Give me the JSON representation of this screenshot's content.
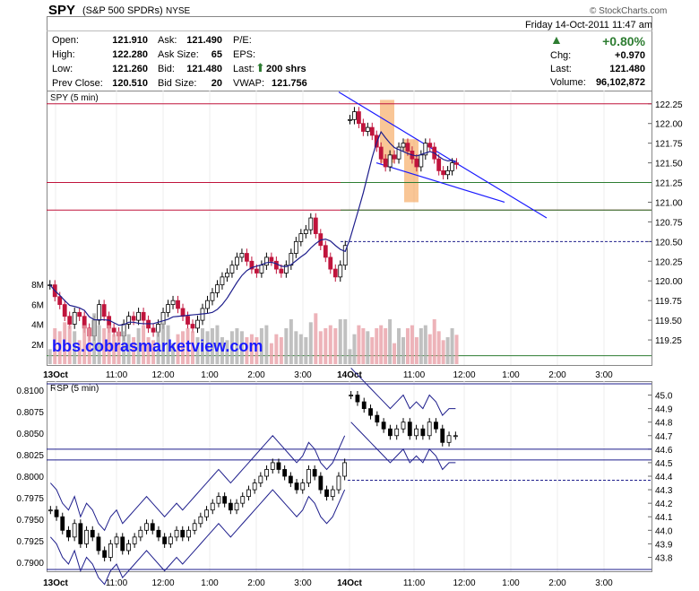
{
  "header": {
    "symbol": "SPY",
    "name": "(S&P 500 SPDRs)",
    "exchange": "NYSE",
    "credit": "© StockCharts.com",
    "date": "Friday  14-Oct-2011  11:47 am",
    "change_pct": "+0.80%",
    "chg_label": "Chg:",
    "chg": "+0.970",
    "last_label": "Last:",
    "last": "121.480",
    "volume_label": "Volume:",
    "volume": "96,102,872",
    "rows": [
      {
        "l1": "Open:",
        "v1": "121.910",
        "l2": "Ask:",
        "v2": "121.490",
        "l3": "P/E:",
        "v3": ""
      },
      {
        "l1": "High:",
        "v1": "122.280",
        "l2": "Ask Size:",
        "v2": "65",
        "l3": "EPS:",
        "v3": ""
      },
      {
        "l1": "Low:",
        "v1": "121.260",
        "l2": "Bid:",
        "v2": "121.480",
        "l3": "Last:",
        "v3": "200 shrs"
      },
      {
        "l1": "Prev Close:",
        "v1": "120.510",
        "l2": "Bid Size:",
        "v2": "20",
        "l3": "VWAP:",
        "v3": "121.756"
      }
    ]
  },
  "watermark": "bbs.cobrasmarketview.com",
  "colors": {
    "up": "#000000",
    "down": "#c0143c",
    "band": "#1e1e8c",
    "hline_red": "#c0143c",
    "hline_green": "#2e7d32",
    "trend": "#1a1aff",
    "highlight": "#f5a050"
  },
  "chart_data": [
    {
      "type": "candlestick",
      "title": "SPY (5 min)",
      "y_ticks": [
        119.25,
        119.5,
        119.75,
        120.0,
        120.25,
        120.5,
        120.75,
        121.0,
        121.25,
        121.5,
        121.75,
        122.0,
        122.25
      ],
      "ylim": [
        119.0,
        122.35
      ],
      "volume_ticks": [
        "2M",
        "4M",
        "6M",
        "8M"
      ],
      "volume_max": 9000000,
      "x_ticks": [
        "13Oct",
        "11:00",
        "12:00",
        "1:00",
        "2:00",
        "3:00",
        "14Oct",
        "11:00",
        "12:00",
        "1:00",
        "2:00",
        "3:00"
      ],
      "h_lines": [
        {
          "value": 122.25,
          "color": "red"
        },
        {
          "value": 121.25,
          "color": "green"
        },
        {
          "value": 120.9,
          "color": "red"
        },
        {
          "value": 120.9,
          "color": "green"
        },
        {
          "value": 120.5,
          "color": "blue-dashed"
        },
        {
          "value": 119.05,
          "color": "green"
        }
      ],
      "closes_day1": [
        119.95,
        119.8,
        119.7,
        119.55,
        119.45,
        119.6,
        119.55,
        119.4,
        119.3,
        119.5,
        119.7,
        119.55,
        119.4,
        119.35,
        119.3,
        119.45,
        119.55,
        119.5,
        119.6,
        119.5,
        119.4,
        119.35,
        119.45,
        119.6,
        119.7,
        119.75,
        119.65,
        119.55,
        119.45,
        119.4,
        119.5,
        119.65,
        119.75,
        119.85,
        119.95,
        120.05,
        120.1,
        120.2,
        120.3,
        120.35,
        120.25,
        120.15,
        120.1,
        120.2,
        120.3,
        120.25,
        120.15,
        120.1,
        120.2,
        120.35,
        120.5,
        120.6,
        120.65,
        120.8,
        120.6,
        120.45,
        120.3,
        120.15,
        120.05,
        120.2,
        120.45
      ],
      "closes_day2": [
        122.05,
        122.15,
        122.0,
        121.9,
        121.95,
        121.85,
        121.7,
        121.55,
        121.45,
        121.6,
        121.55,
        121.7,
        121.75,
        121.65,
        121.55,
        121.45,
        121.6,
        121.75,
        121.7,
        121.55,
        121.4,
        121.35,
        121.4,
        121.5,
        121.48
      ]
    },
    {
      "type": "candlestick",
      "title": "RSP (5 min)",
      "y_ticks_left": [
        0.79,
        0.7925,
        0.795,
        0.7975,
        0.8,
        0.8025,
        0.805,
        0.8075,
        0.81
      ],
      "y_ticks_right": [
        43.8,
        43.9,
        44.0,
        44.1,
        44.2,
        44.3,
        44.4,
        44.5,
        44.6,
        44.7,
        44.8,
        44.9,
        45.0
      ],
      "ylim": [
        43.75,
        45.05
      ],
      "x_ticks": [
        "13Oct",
        "11:00",
        "12:00",
        "1:00",
        "2:00",
        "3:00",
        "14Oct",
        "11:00",
        "12:00",
        "1:00",
        "2:00",
        "3:00"
      ],
      "h_lines": [
        44.6,
        44.52,
        44.37
      ],
      "closes_day1": [
        44.15,
        44.1,
        44.0,
        43.95,
        44.05,
        43.9,
        44.0,
        43.95,
        43.85,
        43.8,
        43.9,
        43.95,
        43.85,
        43.9,
        43.95,
        44.0,
        44.05,
        44.0,
        43.95,
        43.9,
        43.95,
        44.0,
        43.95,
        44.0,
        44.05,
        44.1,
        44.15,
        44.2,
        44.25,
        44.2,
        44.15,
        44.2,
        44.25,
        44.3,
        44.35,
        44.4,
        44.45,
        44.5,
        44.45,
        44.4,
        44.35,
        44.3,
        44.35,
        44.45,
        44.4,
        44.3,
        44.25,
        44.3,
        44.4,
        44.5
      ],
      "closes_day2": [
        45.0,
        44.95,
        44.9,
        44.85,
        44.8,
        44.75,
        44.7,
        44.75,
        44.8,
        44.7,
        44.75,
        44.7,
        44.8,
        44.75,
        44.65,
        44.7,
        44.7
      ]
    }
  ]
}
